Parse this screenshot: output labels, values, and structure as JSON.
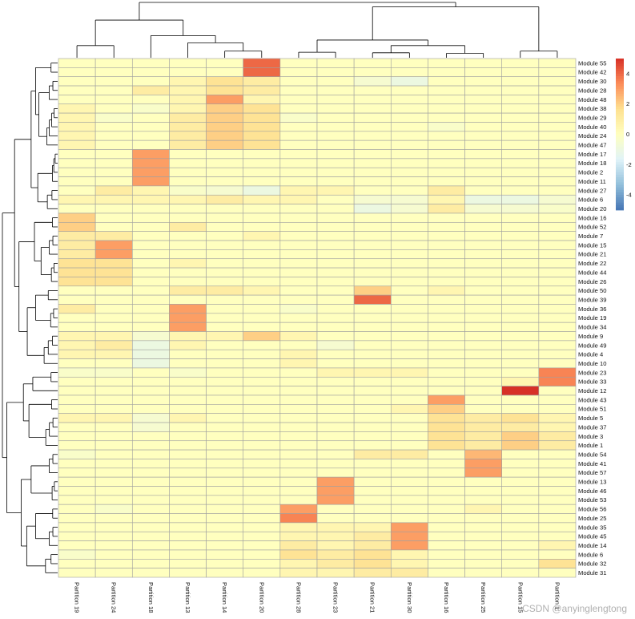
{
  "chart_data": {
    "type": "heatmap",
    "title": "",
    "columns": [
      "Partition 19",
      "Partition 24",
      "Partition 18",
      "Partition 13",
      "Partition 14",
      "Partition 20",
      "Partition 28",
      "Partition 23",
      "Partition 21",
      "Partition 30",
      "Partition 16",
      "Partition 25",
      "Partition 15",
      "Partition 1"
    ],
    "rows": [
      "Module 55",
      "Module 42",
      "Module 30",
      "Module 28",
      "Module 48",
      "Module 38",
      "Module 29",
      "Module 40",
      "Module 24",
      "Module 47",
      "Module 17",
      "Module 18",
      "Module 2",
      "Module 11",
      "Module 27",
      "Module 6",
      "Module 20",
      "Module 16",
      "Module 52",
      "Module 7",
      "Module 15",
      "Module 21",
      "Module 22",
      "Module 44",
      "Module 26",
      "Module 50",
      "Module 39",
      "Module 36",
      "Module 19",
      "Module 34",
      "Module 9",
      "Module 49",
      "Module 4",
      "Module 10",
      "Module 23",
      "Module 33",
      "Module 12",
      "Module 43",
      "Module 51",
      "Module 5",
      "Module 37",
      "Module 3",
      "Module 1",
      "Module 54",
      "Module 41",
      "Module 57",
      "Module 13",
      "Module 46",
      "Module 53",
      "Module 56",
      "Module 25",
      "Module 35",
      "Module 45",
      "Module 14",
      "Module 6",
      "Module 32",
      "Module 31"
    ],
    "values": [
      [
        0,
        0,
        0,
        0,
        0,
        4,
        0,
        0,
        0,
        0,
        0,
        0,
        0,
        0
      ],
      [
        0,
        0,
        0,
        0,
        0,
        4,
        0,
        0,
        0,
        0,
        0,
        0,
        0,
        0
      ],
      [
        0,
        0,
        0,
        0.5,
        1.5,
        1,
        0,
        0,
        -0.5,
        -1,
        0,
        0,
        0,
        0
      ],
      [
        0,
        0,
        1,
        0.5,
        1.5,
        1,
        0,
        0,
        0,
        0,
        0,
        0,
        0,
        0
      ],
      [
        0,
        0,
        0,
        0.5,
        3,
        0.5,
        0,
        0,
        0,
        0,
        0,
        0,
        0,
        0
      ],
      [
        0.5,
        0,
        -0.3,
        0.5,
        2,
        1.5,
        0,
        0,
        0,
        0,
        0,
        0,
        0,
        0
      ],
      [
        0.5,
        -0.3,
        0,
        1,
        2,
        1.5,
        -0.3,
        0,
        0,
        0,
        0,
        0,
        0,
        0
      ],
      [
        0.5,
        0,
        0,
        1,
        2,
        1.5,
        0,
        0,
        0,
        0,
        -0.3,
        0,
        0,
        0
      ],
      [
        0.5,
        0,
        0,
        1,
        2,
        1.5,
        0,
        0,
        0,
        0,
        0,
        0,
        0,
        0
      ],
      [
        0.5,
        0,
        0,
        1,
        2,
        1.5,
        0,
        0,
        0,
        0,
        0,
        0,
        0,
        0
      ],
      [
        0,
        0,
        3,
        0,
        0,
        0,
        0,
        0,
        0,
        0,
        0,
        0,
        0,
        0
      ],
      [
        0,
        0,
        3,
        0,
        0,
        0,
        0,
        0,
        0,
        0,
        0,
        0,
        0,
        0
      ],
      [
        0,
        0,
        3,
        0,
        0,
        0,
        0,
        0,
        0,
        0,
        0,
        0,
        0,
        0
      ],
      [
        0,
        0,
        3,
        0,
        0,
        0,
        0,
        0,
        0,
        0,
        0,
        0,
        0,
        0
      ],
      [
        0,
        1,
        0.5,
        -0.3,
        -0.5,
        -1,
        0.5,
        0.5,
        0,
        0,
        1,
        0,
        0,
        0
      ],
      [
        0.5,
        0.5,
        0.5,
        0.5,
        1,
        0.5,
        0.5,
        0,
        -0.5,
        -0.5,
        0.5,
        -1,
        -1,
        -0.5
      ],
      [
        0,
        0,
        0,
        0,
        0,
        0,
        0,
        0,
        -1,
        -0.5,
        1,
        -0.5,
        -0.5,
        -0.3
      ],
      [
        2,
        0,
        0,
        0,
        0,
        0,
        0,
        0,
        0,
        0,
        0,
        0,
        0,
        0
      ],
      [
        2,
        0,
        0,
        1,
        0,
        0,
        0,
        0,
        0,
        0,
        0,
        0,
        0,
        0
      ],
      [
        1,
        1,
        0,
        0,
        0,
        0.5,
        0,
        0,
        0,
        0,
        0,
        0,
        0,
        0
      ],
      [
        1,
        3,
        0,
        0,
        0,
        0,
        0,
        0,
        0,
        0,
        0,
        0,
        0,
        0
      ],
      [
        1,
        3,
        0,
        0,
        0,
        0,
        0,
        0,
        0,
        0,
        0,
        0,
        0,
        0
      ],
      [
        1.5,
        1.5,
        0,
        0.5,
        0,
        0,
        0,
        0,
        0,
        0,
        0,
        0,
        0,
        0
      ],
      [
        1.5,
        1.5,
        0,
        0,
        0,
        0,
        0,
        0,
        0,
        0,
        0,
        0,
        0,
        0
      ],
      [
        1.5,
        1.5,
        0,
        0,
        0,
        0,
        0,
        0,
        0,
        0,
        0,
        0,
        0,
        0
      ],
      [
        0,
        0,
        0,
        1,
        1,
        0.5,
        0,
        0,
        2,
        0,
        0.5,
        0,
        0,
        0
      ],
      [
        0,
        0,
        0,
        0,
        0,
        0,
        0,
        0,
        4,
        0,
        0,
        0,
        0,
        0
      ],
      [
        1,
        0,
        0,
        3,
        0,
        0,
        -0.3,
        0,
        0,
        0,
        0,
        0,
        0,
        0
      ],
      [
        0,
        0,
        0,
        3,
        0,
        0,
        0,
        0,
        0,
        0,
        0,
        0,
        0,
        0
      ],
      [
        0,
        0,
        0,
        3,
        0,
        0,
        0,
        0,
        0,
        0,
        0,
        0,
        0,
        0
      ],
      [
        0.5,
        0.5,
        -0.5,
        0.5,
        0.5,
        2,
        0.5,
        0,
        0,
        0,
        0,
        0,
        0,
        0
      ],
      [
        0.5,
        1,
        -1,
        0.5,
        0,
        0,
        0,
        -0.5,
        0,
        0,
        0,
        0,
        0,
        0
      ],
      [
        0.5,
        0.5,
        -1,
        0,
        0,
        0,
        0.5,
        0,
        0,
        0,
        0,
        0,
        0,
        0
      ],
      [
        0,
        0,
        -1,
        0,
        0,
        0,
        0.5,
        0,
        0,
        0,
        0,
        0,
        0,
        0
      ],
      [
        -0.3,
        -0.3,
        0,
        -0.3,
        0,
        0,
        0,
        0.5,
        0.5,
        0.5,
        0,
        0,
        0,
        3.5
      ],
      [
        0,
        0,
        0,
        0,
        0,
        0,
        0,
        0,
        0,
        0,
        0,
        0,
        0.5,
        3.5
      ],
      [
        0,
        0,
        0,
        0,
        0,
        0,
        0,
        0,
        0,
        0,
        0,
        0,
        5,
        0
      ],
      [
        0,
        0,
        0,
        0,
        0,
        0,
        0,
        0,
        0,
        0,
        3,
        0,
        0,
        0
      ],
      [
        0,
        0,
        0,
        0,
        0,
        0,
        0,
        0,
        0,
        0.5,
        2,
        0,
        0,
        0
      ],
      [
        0.5,
        0.5,
        -0.5,
        0.5,
        0,
        0,
        0,
        0,
        0,
        0,
        1.5,
        1,
        1.5,
        0.5
      ],
      [
        0,
        0,
        -0.5,
        0,
        0,
        0,
        0,
        0,
        0,
        0,
        1.5,
        1,
        1,
        0.5
      ],
      [
        0,
        0,
        0,
        0,
        0,
        0,
        0,
        0,
        0,
        0,
        1.5,
        1,
        2,
        1
      ],
      [
        0,
        0,
        0,
        0,
        0,
        0,
        0,
        0,
        0,
        0,
        1.5,
        1,
        2,
        1
      ],
      [
        -0.3,
        0,
        0,
        0,
        0,
        0,
        0,
        0,
        1,
        1,
        0,
        2.5,
        0,
        0
      ],
      [
        0,
        0,
        0,
        0,
        0,
        0,
        0,
        0,
        0,
        0,
        0,
        3,
        0,
        0
      ],
      [
        0,
        0,
        0,
        0,
        0,
        0,
        0,
        0,
        0,
        0,
        0,
        3,
        0,
        0
      ],
      [
        0,
        0,
        0,
        0,
        0,
        0,
        0,
        3,
        0,
        0,
        0,
        0,
        0,
        0
      ],
      [
        0,
        0,
        0,
        0,
        0,
        0,
        0,
        3,
        0,
        0,
        0,
        0,
        0,
        0
      ],
      [
        0,
        0,
        0,
        0,
        0,
        0,
        0,
        3,
        0,
        0,
        0,
        0,
        0,
        0
      ],
      [
        0,
        -0.3,
        0,
        0,
        0,
        0,
        3,
        0,
        0,
        0,
        0,
        0.5,
        0,
        0
      ],
      [
        0,
        0,
        0,
        0,
        0,
        0,
        3.5,
        0,
        0,
        0,
        0,
        0,
        0,
        0
      ],
      [
        0,
        0,
        0,
        0,
        0,
        0,
        0.5,
        0.5,
        0.5,
        3,
        0,
        0,
        0,
        0
      ],
      [
        0,
        0,
        0,
        0,
        0,
        0,
        0.5,
        0.5,
        1,
        3,
        0,
        0,
        0,
        0
      ],
      [
        0,
        0,
        0,
        0,
        0,
        0,
        1,
        0.5,
        1,
        3,
        0,
        0,
        0,
        0.5
      ],
      [
        -0.3,
        0,
        0,
        0,
        0,
        0,
        1.5,
        1,
        1.5,
        0.5,
        0,
        0,
        0,
        0
      ],
      [
        0,
        0,
        0,
        0,
        0,
        0,
        0.5,
        1,
        1.5,
        0.5,
        0,
        0,
        0,
        1.5
      ],
      [
        0,
        0,
        0,
        0,
        0,
        0,
        0.5,
        0.5,
        1,
        1,
        0,
        0,
        0,
        0
      ]
    ],
    "scale_min": -5,
    "scale_max": 5,
    "colorscale": [
      "#4575b4",
      "#91bfdb",
      "#e0f3f8",
      "#ffffbf",
      "#fee090",
      "#fc8d59",
      "#d73027"
    ],
    "legend_ticks": [
      4,
      2,
      0,
      -2,
      -4
    ],
    "legend_position": "top-right",
    "grid": true,
    "row_dendrogram": true,
    "column_dendrogram": true
  },
  "watermark": "CSDN @anyinglengtong"
}
